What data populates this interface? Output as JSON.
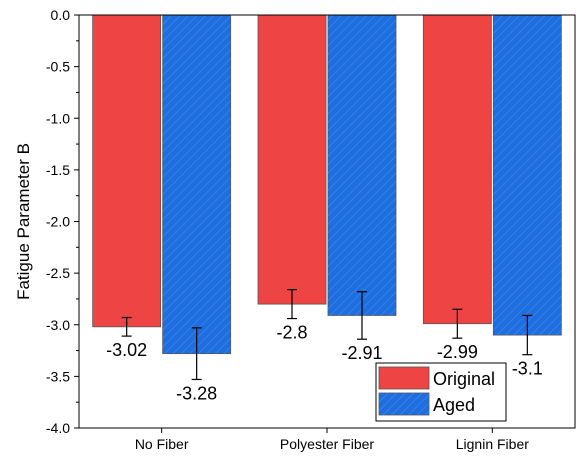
{
  "chart_data": {
    "type": "bar",
    "ylabel": "Fatigue Parameter B",
    "xlabel": "",
    "ylim": [
      -4.0,
      0.0
    ],
    "yticks": [
      0.0,
      -0.5,
      -1.0,
      -1.5,
      -2.0,
      -2.5,
      -3.0,
      -3.5,
      -4.0
    ],
    "ytick_labels": [
      "0.0",
      "-0.5",
      "-1.0",
      "-1.5",
      "-2.0",
      "-2.5",
      "-3.0",
      "-3.5",
      "-4.0"
    ],
    "categories": [
      "No Fiber",
      "Polyester Fiber",
      "Lignin Fiber"
    ],
    "series": [
      {
        "name": "Original",
        "values": [
          -3.02,
          -2.8,
          -2.99
        ],
        "value_labels": [
          "-3.02",
          "-2.8",
          "-2.99"
        ],
        "error": [
          0.09,
          0.14,
          0.14
        ],
        "color": "#ef4444",
        "hatch": false
      },
      {
        "name": "Aged",
        "values": [
          -3.28,
          -2.91,
          -3.1
        ],
        "value_labels": [
          "-3.28",
          "-2.91",
          "-3.1"
        ],
        "error": [
          0.25,
          0.23,
          0.19
        ],
        "color": "#1e6ee0",
        "hatch": true
      }
    ],
    "legend": {
      "position": "bottom-right"
    },
    "grid": false
  }
}
